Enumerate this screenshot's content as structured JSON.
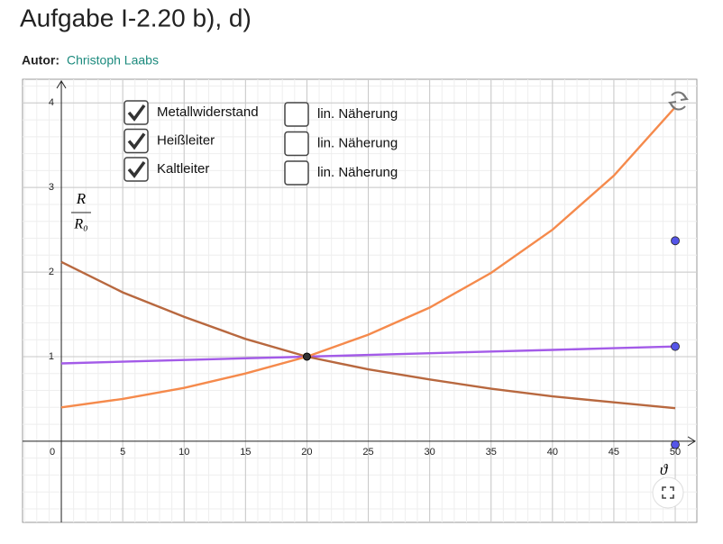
{
  "header": {
    "title": "Aufgabe I-2.20 b), d)",
    "author_label": "Autor:",
    "author": "Christoph Laabs"
  },
  "chart_data": {
    "type": "line",
    "x": [
      0,
      5,
      10,
      15,
      20,
      25,
      30,
      35,
      40,
      45,
      50
    ],
    "series": [
      {
        "name": "Metallwiderstand",
        "color": "#a35be8",
        "visible": true,
        "values": [
          0.92,
          0.94,
          0.96,
          0.98,
          1.0,
          1.02,
          1.04,
          1.06,
          1.08,
          1.1,
          1.12
        ]
      },
      {
        "name": "Heißleiter",
        "color": "#b8683f",
        "visible": true,
        "values": [
          2.12,
          1.76,
          1.47,
          1.21,
          1.0,
          0.85,
          0.73,
          0.62,
          0.53,
          0.46,
          0.39
        ]
      },
      {
        "name": "Kaltleiter",
        "color": "#f58a4c",
        "visible": true,
        "values": [
          0.4,
          0.5,
          0.63,
          0.8,
          1.0,
          1.26,
          1.58,
          1.99,
          2.5,
          3.14,
          3.95
        ]
      }
    ],
    "points": {
      "color": "#5555e8",
      "x": [
        50,
        50,
        50
      ],
      "values": [
        2.37,
        1.12,
        -0.04
      ]
    },
    "intersection": {
      "color": "#333333",
      "x": 20,
      "value": 1
    },
    "approximations": {
      "label": [
        "lin. Näherung",
        "lin. Näherung",
        "lin. Näherung"
      ],
      "checked": [
        false,
        false,
        false
      ]
    },
    "y_label": {
      "numerator": "R",
      "denominator": "R₀"
    },
    "x_label": "ϑ",
    "xlim": [
      -3.16,
      51.76
    ],
    "ylim": [
      -0.96,
      4.28
    ],
    "xticks": [
      0,
      5,
      10,
      15,
      20,
      25,
      30,
      35,
      40,
      45,
      50
    ],
    "yticks": [
      1,
      2,
      3,
      4
    ],
    "grid": true
  }
}
